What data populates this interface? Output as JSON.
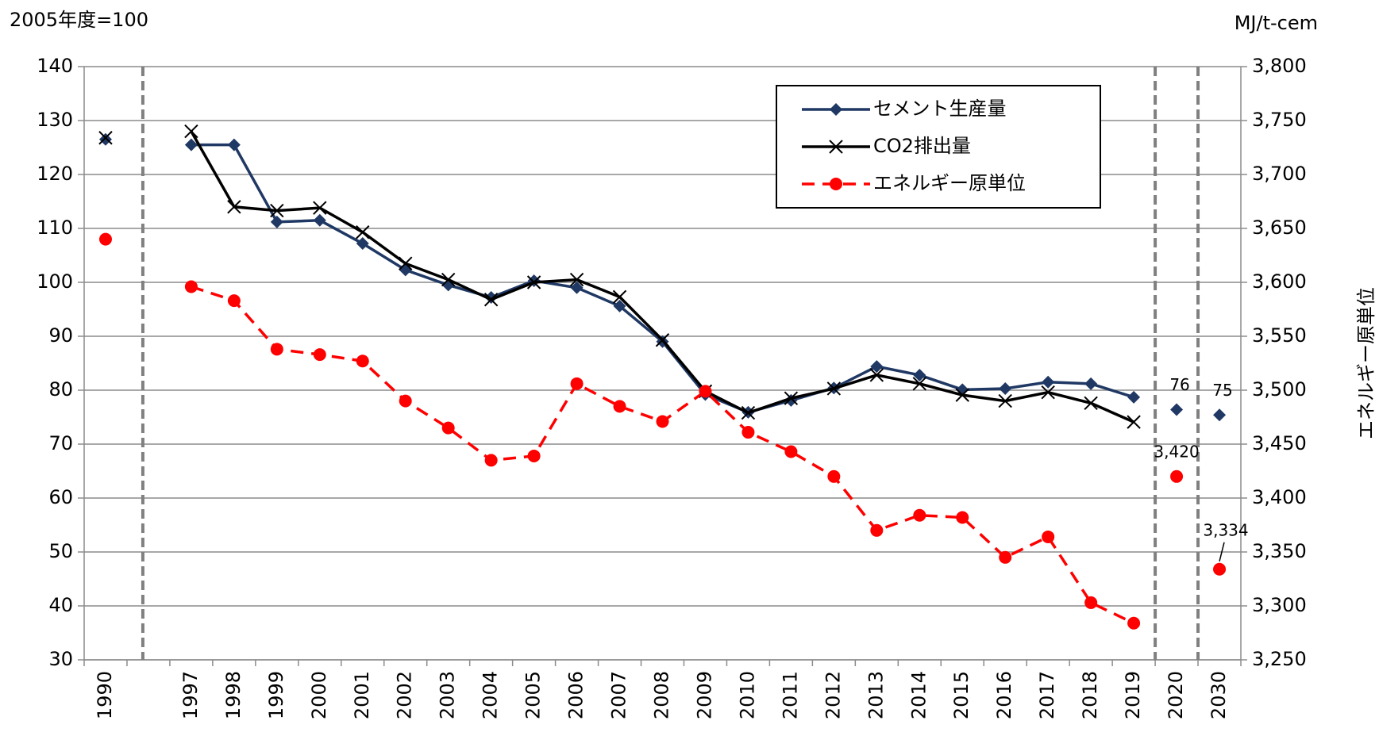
{
  "chart_data": {
    "type": "line",
    "y_unit_note": "2005年度=100",
    "y2_unit_note": "MJ/t-cem",
    "y2_label": "エネルギー原単位",
    "categories": [
      "1990",
      null,
      "1997",
      "1998",
      "1999",
      "2000",
      "2001",
      "2002",
      "2003",
      "2004",
      "2005",
      "2006",
      "2007",
      "2008",
      "2009",
      "2010",
      "2011",
      "2012",
      "2013",
      "2014",
      "2015",
      "2016",
      "2017",
      "2018",
      "2019",
      "2020",
      "2030"
    ],
    "ylim": [
      30,
      140
    ],
    "yticks": [
      30,
      40,
      50,
      60,
      70,
      80,
      90,
      100,
      110,
      120,
      130,
      140
    ],
    "y2lim": [
      3250,
      3800
    ],
    "y2ticks": [
      {
        "value": 3250,
        "label": "3,250"
      },
      {
        "value": 3300,
        "label": "3,300"
      },
      {
        "value": 3350,
        "label": "3,350"
      },
      {
        "value": 3400,
        "label": "3,400"
      },
      {
        "value": 3450,
        "label": "3,450"
      },
      {
        "value": 3500,
        "label": "3,500"
      },
      {
        "value": 3550,
        "label": "3,550"
      },
      {
        "value": 3600,
        "label": "3,600"
      },
      {
        "value": 3650,
        "label": "3,650"
      },
      {
        "value": 3700,
        "label": "3,700"
      },
      {
        "value": 3750,
        "label": "3,750"
      },
      {
        "value": 3800,
        "label": "3,800"
      }
    ],
    "grid": true,
    "legend": "upper right",
    "series": [
      {
        "name": "セメント生産量",
        "color": "#1f3864",
        "marker": "diamond",
        "dash": false,
        "values": [
          126.5,
          null,
          125.5,
          125.5,
          111.2,
          111.5,
          107.2,
          102.3,
          99.5,
          97.2,
          100.3,
          99,
          95.6,
          89,
          79.2,
          75.9,
          78.1,
          80.4,
          84.4,
          82.8,
          80.1,
          80.3,
          81.5,
          81.2,
          78.7,
          76.4,
          75.4
        ],
        "value_labels": [
          null,
          null,
          null,
          null,
          null,
          null,
          null,
          null,
          null,
          null,
          null,
          null,
          null,
          null,
          null,
          null,
          null,
          null,
          null,
          null,
          null,
          null,
          null,
          null,
          null,
          "76",
          "75"
        ]
      },
      {
        "name": "CO2排出量",
        "color": "#000000",
        "marker": "x",
        "dash": false,
        "values": [
          126.8,
          null,
          128,
          114,
          113.3,
          113.8,
          109.3,
          103.5,
          100.5,
          96.8,
          100,
          100.5,
          97.3,
          89.3,
          79.8,
          75.8,
          78.5,
          80.3,
          82.8,
          81.2,
          79.1,
          78,
          79.6,
          77.6,
          74.1,
          null,
          null
        ]
      },
      {
        "name": "エネルギー原単位",
        "color": "#ff0000",
        "marker": "circle",
        "dash": true,
        "axis": "y2",
        "values": [
          3640,
          null,
          3596,
          3583,
          3538,
          3533,
          3527,
          3490,
          3465,
          3435,
          3439,
          3506,
          3485,
          3471,
          3499,
          3461,
          3443,
          3420,
          3370,
          3384,
          3382,
          3345,
          3364,
          3303,
          3284,
          3420,
          3334
        ],
        "value_labels": [
          null,
          null,
          null,
          null,
          null,
          null,
          null,
          null,
          null,
          null,
          null,
          null,
          null,
          null,
          null,
          null,
          null,
          null,
          null,
          null,
          null,
          null,
          null,
          null,
          null,
          "3,420",
          "3,334"
        ]
      }
    ]
  }
}
